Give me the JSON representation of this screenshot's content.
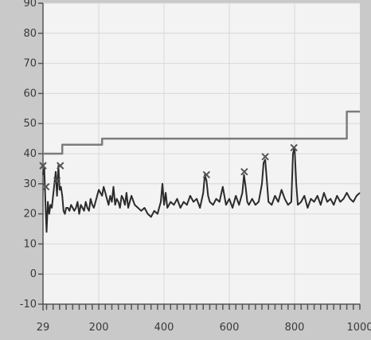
{
  "chart_data": {
    "type": "line",
    "title": "",
    "xlabel": "",
    "ylabel": "",
    "xlim": [
      29,
      1000
    ],
    "ylim": [
      -10,
      90
    ],
    "grid": true,
    "x_ticks": [
      {
        "value": 29,
        "label": "29"
      },
      {
        "value": 200,
        "label": "200"
      },
      {
        "value": 400,
        "label": "400"
      },
      {
        "value": 600,
        "label": "600"
      },
      {
        "value": 800,
        "label": "800"
      },
      {
        "value": 1000,
        "label": "1000"
      }
    ],
    "y_ticks": [
      {
        "value": 90,
        "label": "90"
      },
      {
        "value": 80,
        "label": "80"
      },
      {
        "value": 70,
        "label": "70"
      },
      {
        "value": 60,
        "label": "60"
      },
      {
        "value": 50,
        "label": "50"
      },
      {
        "value": 40,
        "label": "40"
      },
      {
        "value": 30,
        "label": "30"
      },
      {
        "value": 20,
        "label": "20"
      },
      {
        "value": 10,
        "label": "10"
      },
      {
        "value": 0,
        "label": "0"
      },
      {
        "value": -10,
        "label": "-10"
      }
    ],
    "colors": {
      "background": "#c9c9c9",
      "plot_bg": "#f3f3f3",
      "grid": "#d8d8d8",
      "limit_line": "#7c7c7c",
      "signal_line": "#2b2b2b",
      "peak_marker": "#555555"
    },
    "series": [
      {
        "style": "step",
        "x": [
          29,
          88,
          88,
          210,
          210,
          960,
          960,
          1000
        ],
        "values": [
          40,
          40,
          43,
          43,
          45,
          45,
          54,
          54
        ]
      },
      {
        "style": "line",
        "x": [
          29,
          33,
          37,
          40,
          44,
          48,
          52,
          56,
          60,
          64,
          68,
          72,
          76,
          80,
          84,
          88,
          92,
          96,
          100,
          105,
          110,
          115,
          120,
          125,
          130,
          135,
          140,
          145,
          150,
          155,
          160,
          165,
          170,
          175,
          180,
          185,
          190,
          195,
          200,
          205,
          210,
          215,
          220,
          225,
          230,
          235,
          240,
          245,
          250,
          255,
          260,
          265,
          270,
          275,
          280,
          285,
          290,
          295,
          300,
          310,
          320,
          330,
          340,
          350,
          360,
          370,
          380,
          385,
          390,
          395,
          400,
          405,
          410,
          420,
          430,
          440,
          450,
          460,
          470,
          480,
          490,
          500,
          510,
          520,
          525,
          530,
          535,
          540,
          550,
          560,
          570,
          580,
          590,
          600,
          610,
          620,
          630,
          640,
          645,
          650,
          655,
          660,
          670,
          680,
          690,
          695,
          700,
          705,
          710,
          715,
          720,
          730,
          740,
          750,
          760,
          770,
          780,
          790,
          795,
          800,
          805,
          810,
          820,
          830,
          840,
          850,
          860,
          870,
          880,
          890,
          900,
          910,
          920,
          930,
          940,
          950,
          960,
          970,
          980,
          990,
          1000
        ],
        "values": [
          33,
          35,
          22,
          14,
          24,
          20,
          23,
          22,
          26,
          30,
          34,
          26,
          36,
          28,
          29,
          26,
          21,
          20,
          22,
          22,
          21,
          23,
          22,
          21,
          22,
          24,
          20,
          23,
          22,
          21,
          24,
          22,
          21,
          25,
          23,
          22,
          24,
          26,
          28,
          27,
          26,
          29,
          27,
          25,
          23,
          26,
          24,
          29,
          23,
          25,
          24,
          22,
          26,
          25,
          23,
          27,
          22,
          24,
          26,
          23,
          22,
          21,
          22,
          20,
          19,
          21,
          20,
          22,
          24,
          30,
          23,
          27,
          22,
          24,
          23,
          25,
          22,
          24,
          23,
          26,
          24,
          25,
          22,
          27,
          33,
          31,
          26,
          24,
          23,
          25,
          24,
          29,
          23,
          25,
          22,
          26,
          23,
          27,
          33,
          29,
          24,
          23,
          25,
          23,
          24,
          27,
          30,
          37,
          38,
          31,
          24,
          23,
          26,
          24,
          28,
          25,
          23,
          24,
          40,
          42,
          30,
          23,
          24,
          26,
          22,
          25,
          24,
          26,
          23,
          27,
          24,
          25,
          23,
          26,
          24,
          25,
          27,
          25,
          24,
          26,
          27
        ]
      }
    ],
    "markers": [
      {
        "x": 29,
        "y": 36
      },
      {
        "x": 38,
        "y": 29
      },
      {
        "x": 72,
        "y": 31
      },
      {
        "x": 82,
        "y": 36
      },
      {
        "x": 530,
        "y": 33
      },
      {
        "x": 646,
        "y": 34
      },
      {
        "x": 710,
        "y": 39
      },
      {
        "x": 798,
        "y": 42
      }
    ]
  }
}
